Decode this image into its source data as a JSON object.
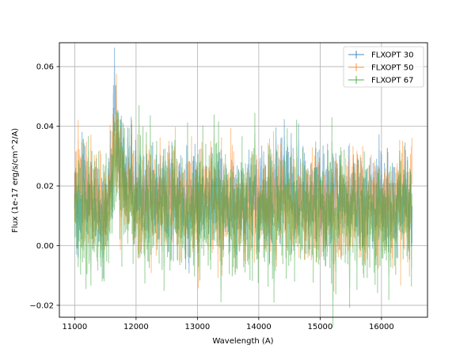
{
  "chart_data": {
    "type": "line",
    "xlabel": "Wavelength (A)",
    "ylabel": "Flux (1e-17 erg/s/cm^2/A)",
    "xlim": [
      10750,
      16750
    ],
    "ylim": [
      -0.024,
      0.068
    ],
    "xticks": [
      11000,
      12000,
      13000,
      14000,
      15000,
      16000
    ],
    "yticks": [
      -0.02,
      0.0,
      0.02,
      0.04,
      0.06
    ],
    "ytick_labels": [
      "−0.02",
      "0.00",
      "0.02",
      "0.04",
      "0.06"
    ],
    "grid": true,
    "legend_position": "top-right",
    "error_bars": true,
    "series": [
      {
        "name": "FLXOPT 30",
        "color": "#1f77b4",
        "x": [
          11000,
          11250,
          11500,
          11600,
          11650,
          11700,
          11800,
          12000,
          12250,
          12500,
          12750,
          13000,
          13250,
          13500,
          13750,
          14000,
          14250,
          14500,
          14750,
          15000,
          15250,
          15500,
          15750,
          16000,
          16250,
          16500
        ],
        "y": [
          0.017,
          0.015,
          0.013,
          0.024,
          0.05,
          0.03,
          0.022,
          0.017,
          0.016,
          0.016,
          0.013,
          0.016,
          0.017,
          0.015,
          0.012,
          0.016,
          0.018,
          0.019,
          0.016,
          0.016,
          0.016,
          0.017,
          0.016,
          0.016,
          0.014,
          0.015
        ]
      },
      {
        "name": "FLXOPT 50",
        "color": "#ff7f0e",
        "x": [
          11000,
          11250,
          11500,
          11600,
          11650,
          11700,
          11800,
          12000,
          12250,
          12500,
          12750,
          13000,
          13250,
          13500,
          13750,
          14000,
          14250,
          14500,
          14750,
          15000,
          15250,
          15500,
          15750,
          16000,
          16250,
          16500
        ],
        "y": [
          0.022,
          0.016,
          0.012,
          0.02,
          0.035,
          0.03,
          0.02,
          0.016,
          0.014,
          0.013,
          0.015,
          0.014,
          0.015,
          0.013,
          0.012,
          0.014,
          0.017,
          0.016,
          0.013,
          0.012,
          0.013,
          0.012,
          0.012,
          0.014,
          0.013,
          0.014
        ]
      },
      {
        "name": "FLXOPT 67",
        "color": "#2ca02c",
        "x": [
          11000,
          11250,
          11500,
          11600,
          11650,
          11700,
          11800,
          12000,
          12250,
          12500,
          12750,
          13000,
          13250,
          13500,
          13750,
          14000,
          14250,
          14500,
          14750,
          15000,
          15250,
          15500,
          15750,
          16000,
          16250,
          16500
        ],
        "y": [
          0.012,
          0.01,
          0.008,
          0.018,
          0.03,
          0.032,
          0.02,
          0.015,
          0.012,
          0.011,
          0.011,
          0.012,
          0.012,
          0.01,
          0.01,
          0.011,
          0.012,
          0.012,
          0.01,
          0.01,
          0.011,
          0.01,
          0.01,
          0.011,
          0.012,
          0.012
        ]
      }
    ]
  }
}
